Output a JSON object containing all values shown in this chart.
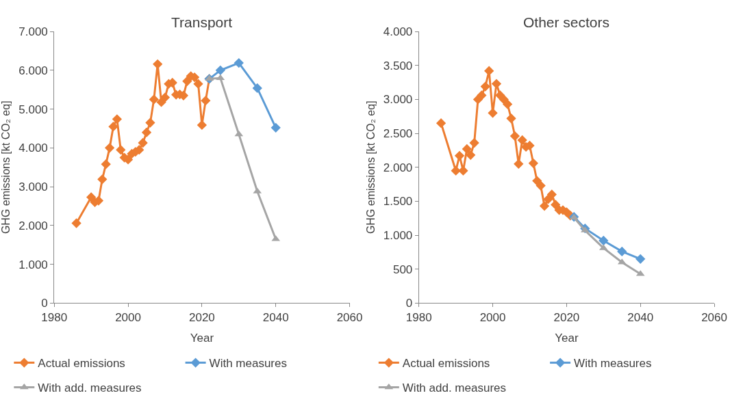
{
  "chart_data": [
    {
      "type": "line",
      "title": "Transport",
      "xlabel": "Year",
      "ylabel": "GHG emissions [kt CO₂ eq]",
      "xlim": [
        1980,
        2060
      ],
      "xticks": [
        1980,
        2000,
        2020,
        2040,
        2060
      ],
      "ylim": [
        0,
        7000
      ],
      "yticks": [
        0,
        {
          "value": 1000,
          "label": "1.000"
        },
        {
          "value": 2000,
          "label": "2.000"
        },
        {
          "value": 3000,
          "label": "3.000"
        },
        {
          "value": 4000,
          "label": "4.000"
        },
        {
          "value": 5000,
          "label": "5.000"
        },
        {
          "value": 6000,
          "label": "6.000"
        },
        {
          "value": 7000,
          "label": "7.000"
        }
      ],
      "grid": false,
      "legend": "bottom",
      "series": [
        {
          "name": "Actual emissions",
          "color": "#ed7d31",
          "marker": "diamond",
          "x": [
            1986,
            1990,
            1991,
            1992,
            1993,
            1994,
            1995,
            1996,
            1997,
            1998,
            1999,
            2000,
            2001,
            2002,
            2003,
            2004,
            2005,
            2006,
            2007,
            2008,
            2009,
            2010,
            2011,
            2012,
            2013,
            2014,
            2015,
            2016,
            2017,
            2018,
            2019,
            2020,
            2021,
            2022
          ],
          "values": [
            2060,
            2730,
            2600,
            2640,
            3190,
            3580,
            4000,
            4550,
            4740,
            3950,
            3750,
            3700,
            3850,
            3900,
            3950,
            4130,
            4400,
            4650,
            5250,
            6160,
            5180,
            5300,
            5650,
            5680,
            5370,
            5380,
            5350,
            5720,
            5850,
            5820,
            5650,
            4590,
            5220,
            5780
          ]
        },
        {
          "name": "With measures",
          "color": "#5b9bd5",
          "marker": "diamond",
          "x": [
            2022,
            2025,
            2030,
            2035,
            2040
          ],
          "values": [
            5780,
            6000,
            6190,
            5540,
            4520
          ]
        },
        {
          "name": "With add. measures",
          "color": "#a5a5a5",
          "marker": "triangle",
          "x": [
            2022,
            2025,
            2030,
            2035,
            2040
          ],
          "values": [
            5780,
            5800,
            4350,
            2880,
            1650
          ]
        }
      ]
    },
    {
      "type": "line",
      "title": "Other sectors",
      "xlabel": "Year",
      "ylabel": "GHG emissions [kt CO₂ eq]",
      "xlim": [
        1980,
        2060
      ],
      "xticks": [
        1980,
        2000,
        2020,
        2040,
        2060
      ],
      "ylim": [
        0,
        4000
      ],
      "yticks": [
        0,
        500,
        {
          "value": 1000,
          "label": "1.000"
        },
        {
          "value": 1500,
          "label": "1.500"
        },
        {
          "value": 2000,
          "label": "2.000"
        },
        {
          "value": 2500,
          "label": "2.500"
        },
        {
          "value": 3000,
          "label": "3.000"
        },
        {
          "value": 3500,
          "label": "3.500"
        },
        {
          "value": 4000,
          "label": "4.000"
        }
      ],
      "grid": false,
      "legend": "bottom",
      "series": [
        {
          "name": "Actual emissions",
          "color": "#ed7d31",
          "marker": "diamond",
          "x": [
            1986,
            1990,
            1991,
            1992,
            1993,
            1994,
            1995,
            1996,
            1997,
            1998,
            1999,
            2000,
            2001,
            2002,
            2003,
            2004,
            2005,
            2006,
            2007,
            2008,
            2009,
            2010,
            2011,
            2012,
            2013,
            2014,
            2015,
            2016,
            2017,
            2018,
            2019,
            2020,
            2021
          ],
          "values": [
            2650,
            1950,
            2170,
            1950,
            2270,
            2180,
            2360,
            3000,
            3060,
            3190,
            3420,
            2800,
            3230,
            3060,
            3000,
            2930,
            2720,
            2460,
            2050,
            2400,
            2300,
            2320,
            2060,
            1800,
            1730,
            1430,
            1530,
            1600,
            1450,
            1370,
            1370,
            1340,
            1290
          ]
        },
        {
          "name": "With measures",
          "color": "#5b9bd5",
          "marker": "diamond",
          "x": [
            2022,
            2025,
            2030,
            2035,
            2040
          ],
          "values": [
            1270,
            1100,
            920,
            760,
            650
          ]
        },
        {
          "name": "With add. measures",
          "color": "#a5a5a5",
          "marker": "triangle",
          "x": [
            2022,
            2025,
            2030,
            2035,
            2040
          ],
          "values": [
            1260,
            1070,
            810,
            600,
            430
          ]
        }
      ]
    }
  ]
}
